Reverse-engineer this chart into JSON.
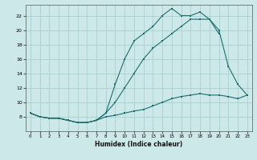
{
  "xlabel": "Humidex (Indice chaleur)",
  "bg_color": "#cce8e8",
  "line_color": "#1a6e6e",
  "grid_color": "#aacfcf",
  "xlim": [
    -0.5,
    23.5
  ],
  "ylim": [
    6,
    23.5
  ],
  "xticks": [
    0,
    1,
    2,
    3,
    4,
    5,
    6,
    7,
    8,
    9,
    10,
    11,
    12,
    13,
    14,
    15,
    16,
    17,
    18,
    19,
    20,
    21,
    22,
    23
  ],
  "yticks": [
    8,
    10,
    12,
    14,
    16,
    18,
    20,
    22
  ],
  "line_bottom_x": [
    0,
    1,
    2,
    3,
    4,
    5,
    6,
    7,
    8,
    9,
    10,
    11,
    12,
    13,
    14,
    15,
    16,
    17,
    18,
    19,
    20,
    21,
    22,
    23
  ],
  "line_bottom_y": [
    8.5,
    8.0,
    7.8,
    7.8,
    7.5,
    7.2,
    7.2,
    7.5,
    8.0,
    8.2,
    8.5,
    8.8,
    9.0,
    9.5,
    10.0,
    10.5,
    10.8,
    11.0,
    11.2,
    11.0,
    11.0,
    10.8,
    10.5,
    11.0
  ],
  "line_mid_x": [
    0,
    1,
    2,
    3,
    4,
    5,
    6,
    7,
    8,
    9,
    10,
    11,
    12,
    13,
    14,
    15,
    16,
    17,
    18,
    19,
    20
  ],
  "line_mid_y": [
    8.5,
    8.0,
    7.8,
    7.8,
    7.5,
    7.2,
    7.2,
    7.5,
    8.5,
    10.0,
    12.0,
    14.0,
    16.0,
    17.5,
    18.5,
    19.5,
    20.5,
    21.5,
    21.5,
    21.5,
    19.5
  ],
  "line_top_x": [
    0,
    1,
    2,
    3,
    4,
    5,
    6,
    7,
    8,
    9,
    10,
    11,
    12,
    13,
    14,
    15,
    16,
    17,
    18,
    19,
    20,
    21,
    22,
    23
  ],
  "line_top_y": [
    8.5,
    8.0,
    7.8,
    7.8,
    7.5,
    7.2,
    7.2,
    7.5,
    8.5,
    12.5,
    16.0,
    18.5,
    19.5,
    20.5,
    22.0,
    23.0,
    22.0,
    22.0,
    22.5,
    21.5,
    20.0,
    15.0,
    12.5,
    11.0
  ]
}
